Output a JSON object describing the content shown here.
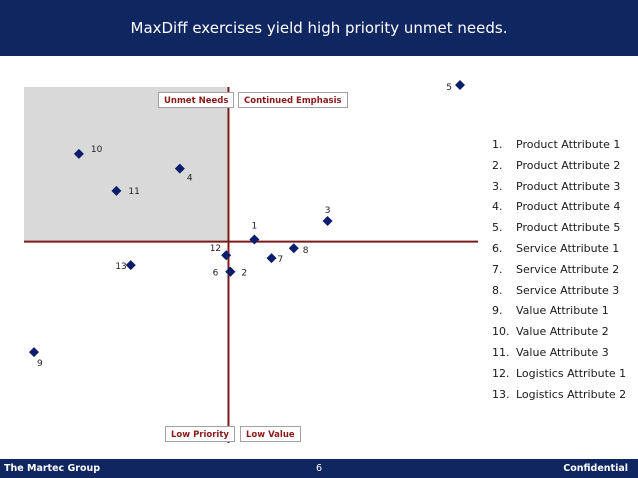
{
  "header": {
    "title": "MaxDiff exercises yield high priority unmet needs."
  },
  "footer": {
    "company": "The Martec Group",
    "page": "6",
    "confidentiality": "Confidential"
  },
  "quadrant_labels": {
    "top_left": "Unmet Needs",
    "top_right": "Continued Emphasis",
    "bottom_left": "Low Priority",
    "bottom_right": "Low Value"
  },
  "legend": [
    {
      "num": "1.",
      "label": "Product Attribute 1"
    },
    {
      "num": "2.",
      "label": "Product Attribute 2"
    },
    {
      "num": "3.",
      "label": "Product Attribute 3"
    },
    {
      "num": "4.",
      "label": "Product Attribute 4"
    },
    {
      "num": "5.",
      "label": "Product Attribute 5"
    },
    {
      "num": "6.",
      "label": "Service Attribute 1"
    },
    {
      "num": "7.",
      "label": "Service Attribute 2"
    },
    {
      "num": "8.",
      "label": "Service Attribute 3"
    },
    {
      "num": "9.",
      "label": "Value Attribute 1"
    },
    {
      "num": "10.",
      "label": "Value Attribute 2"
    },
    {
      "num": "11.",
      "label": "Value Attribute 3"
    },
    {
      "num": "12.",
      "label": "Logistics Attribute 1"
    },
    {
      "num": "13.",
      "label": "Logistics Attribute 2"
    }
  ],
  "colors": {
    "banner": "#0f2660",
    "marker": "#0c1d6b",
    "axis": "#7a1a1a",
    "shade": "#d9d9d9",
    "label_text": "#8b1a1a"
  },
  "chart_data": {
    "type": "scatter",
    "title": "",
    "xlabel": "",
    "ylabel": "",
    "xlim": [
      -4.2,
      5.0
    ],
    "ylim": [
      -3.6,
      3.8
    ],
    "grid": false,
    "axes_cross_at": [
      0,
      0
    ],
    "shaded_quadrant": "top-left",
    "points": [
      {
        "label": "1",
        "x": 0.56,
        "y": 0.05
      },
      {
        "label": "2",
        "x": 0.04,
        "y": -0.73
      },
      {
        "label": "3",
        "x": 2.14,
        "y": 0.5
      },
      {
        "label": "4",
        "x": -1.05,
        "y": 1.77
      },
      {
        "label": "5",
        "x": 5.0,
        "y": 3.8
      },
      {
        "label": "6",
        "x": 0.04,
        "y": -0.73
      },
      {
        "label": "7",
        "x": 0.93,
        "y": -0.4
      },
      {
        "label": "8",
        "x": 1.41,
        "y": -0.16
      },
      {
        "label": "9",
        "x": -4.2,
        "y": -2.68
      },
      {
        "label": "10",
        "x": -3.23,
        "y": 2.13
      },
      {
        "label": "11",
        "x": -2.42,
        "y": 1.23
      },
      {
        "label": "12",
        "x": -0.05,
        "y": -0.33
      },
      {
        "label": "13",
        "x": -2.11,
        "y": -0.57
      }
    ]
  }
}
